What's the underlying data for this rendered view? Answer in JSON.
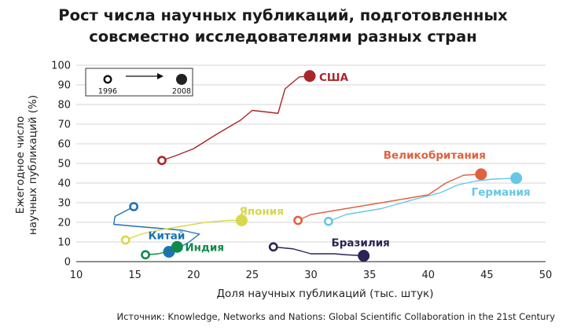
{
  "title_lines": [
    "Рост числа научных публикаций, подготовленных",
    "совсместно исследователями разных стран"
  ],
  "source": "Источник: Knowledge, Networks and Nations: Global Scientific Collaboration in the 21st Century",
  "chart_data": {
    "type": "line",
    "xlabel": "Доля научных публикаций (тыс. штук)",
    "ylabel": [
      "Ежегодное число",
      "научных публикаций (%)"
    ],
    "xlim": [
      10,
      50
    ],
    "ylim": [
      0,
      100
    ],
    "xticks": [
      10,
      15,
      20,
      25,
      30,
      35,
      40,
      45,
      50
    ],
    "yticks": [
      0,
      10,
      20,
      30,
      40,
      50,
      60,
      70,
      80,
      90,
      100
    ],
    "grid": true,
    "legend": {
      "start_label": "1996",
      "end_label": "2008",
      "placement": "top-left"
    },
    "series": [
      {
        "name": "США",
        "color": "#a8262a",
        "points": [
          [
            17.3,
            51.5
          ],
          [
            18.5,
            54
          ],
          [
            20,
            57.5
          ],
          [
            22,
            65
          ],
          [
            24,
            72
          ],
          [
            25,
            77
          ],
          [
            26.5,
            76
          ],
          [
            27.2,
            75.5
          ],
          [
            27.8,
            88
          ],
          [
            28,
            89
          ],
          [
            29,
            94
          ],
          [
            29.9,
            94.5
          ]
        ]
      },
      {
        "name": "Великобритания",
        "color": "#e0613f",
        "points": [
          [
            28.9,
            21
          ],
          [
            30,
            24
          ],
          [
            32,
            26
          ],
          [
            35,
            29
          ],
          [
            38,
            32
          ],
          [
            40,
            34
          ],
          [
            41.5,
            40
          ],
          [
            43,
            44
          ],
          [
            44.5,
            44.5
          ]
        ]
      },
      {
        "name": "Германия",
        "color": "#66c8e6",
        "points": [
          [
            31.5,
            20.5
          ],
          [
            33,
            24
          ],
          [
            36,
            27
          ],
          [
            39,
            32
          ],
          [
            41,
            35
          ],
          [
            42.5,
            39
          ],
          [
            44,
            41
          ],
          [
            45.5,
            42
          ],
          [
            47.5,
            42.5
          ]
        ]
      },
      {
        "name": "Китай",
        "color": "#1d72b8",
        "points": [
          [
            14.9,
            28
          ],
          [
            13.3,
            23
          ],
          [
            13.2,
            19
          ],
          [
            15,
            18
          ],
          [
            19,
            16
          ],
          [
            20.5,
            14
          ],
          [
            19.5,
            9.5
          ],
          [
            18.7,
            7
          ],
          [
            17.9,
            5
          ]
        ]
      },
      {
        "name": "Япония",
        "color": "#d7d84a",
        "points": [
          [
            14.2,
            11
          ],
          [
            15.5,
            14
          ],
          [
            17,
            16
          ],
          [
            19,
            18
          ],
          [
            21,
            20
          ],
          [
            23,
            21
          ],
          [
            24.1,
            21
          ]
        ]
      },
      {
        "name": "Индия",
        "color": "#108a4a",
        "points": [
          [
            15.9,
            3.5
          ],
          [
            17,
            4
          ],
          [
            18,
            5.5
          ],
          [
            18.6,
            7.5
          ]
        ]
      },
      {
        "name": "Бразилия",
        "color": "#2a2455",
        "points": [
          [
            26.8,
            7.5
          ],
          [
            28.5,
            6.5
          ],
          [
            30,
            4
          ],
          [
            32,
            4
          ],
          [
            33,
            3.5
          ],
          [
            34.5,
            3
          ]
        ]
      }
    ]
  }
}
